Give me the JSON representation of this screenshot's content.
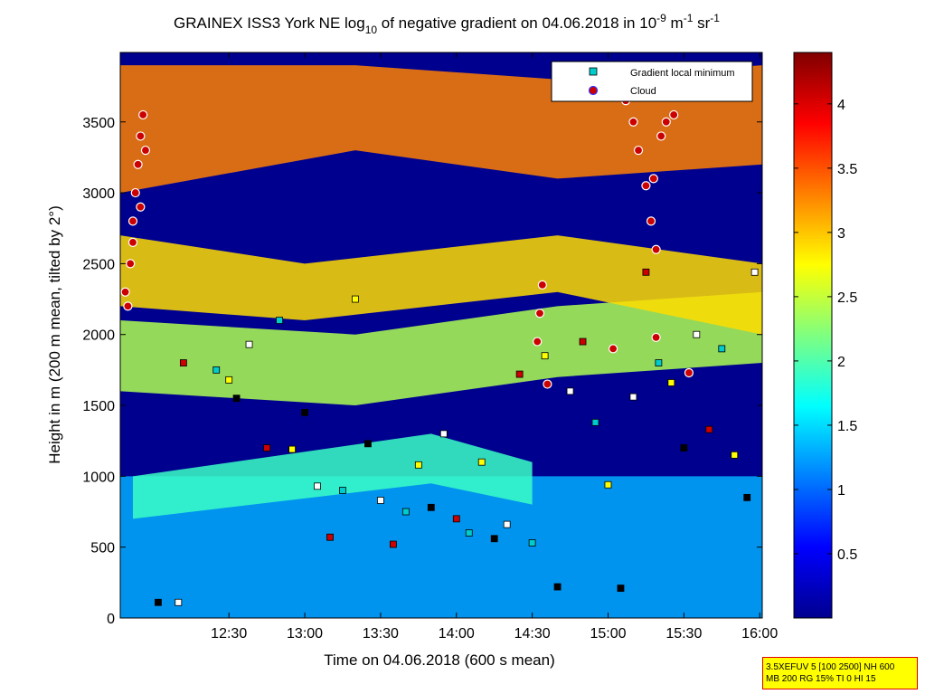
{
  "chart_data": {
    "type": "heatmap",
    "title": {
      "prefix": "GRAINEX ISS3 York NE log",
      "sub": "10",
      "middle": " of negative gradient on 04.06.2018 in 10",
      "sup1": "-9",
      "unit1": " m",
      "sup2": "-1",
      "unit2": " sr",
      "sup3": "-1"
    },
    "xlabel": "Time on 04.06.2018 (600 s mean)",
    "ylabel": "Height in m (200 m mean, tilted by 2°)",
    "x_ticks": [
      "12:30",
      "13:00",
      "13:30",
      "14:00",
      "14:30",
      "15:00",
      "15:30",
      "16:00"
    ],
    "x_tick_minutes": [
      750,
      780,
      810,
      840,
      870,
      900,
      930,
      960
    ],
    "xlim_minutes": [
      707,
      961
    ],
    "y_ticks": [
      "0",
      "500",
      "1000",
      "1500",
      "2000",
      "2500",
      "3000",
      "3500"
    ],
    "y_tick_values": [
      0,
      500,
      1000,
      1500,
      2000,
      2500,
      3000,
      3500
    ],
    "ylim": [
      0,
      3990
    ],
    "colorbar": {
      "ticks": [
        "0.5",
        "1",
        "1.5",
        "2",
        "2.5",
        "3",
        "3.5",
        "4"
      ],
      "tick_values": [
        0.5,
        1,
        1.5,
        2,
        2.5,
        3,
        3.5,
        4
      ],
      "range": [
        0,
        4.4
      ]
    },
    "legend": {
      "position": "top-right",
      "entries": [
        {
          "label": "Gradient local minimum",
          "marker": "square",
          "color": "#00cccc"
        },
        {
          "label": "Cloud",
          "marker": "circle",
          "color": "#cc0000"
        }
      ]
    },
    "colors": {
      "background": "#00008f"
    },
    "bands": [
      {
        "name": "near-surface",
        "x": [
          707,
          961
        ],
        "y": [
          [
            0,
            1000
          ]
        ],
        "level": 1.3
      },
      {
        "name": "layer-1",
        "x": [
          712,
          830,
          870
        ],
        "y": [
          [
            700,
            1000
          ],
          [
            950,
            1300
          ],
          [
            800,
            1100
          ]
        ],
        "level": 1.9
      },
      {
        "name": "layer-2",
        "x": [
          707,
          800,
          880,
          961
        ],
        "y": [
          [
            1600,
            2100
          ],
          [
            1500,
            2000
          ],
          [
            1700,
            2200
          ],
          [
            1800,
            2300
          ]
        ],
        "level": 2.4
      },
      {
        "name": "layer-3",
        "x": [
          707,
          780,
          880,
          961
        ],
        "y": [
          [
            2200,
            2700
          ],
          [
            2100,
            2500
          ],
          [
            2300,
            2700
          ],
          [
            2000,
            2500
          ]
        ],
        "level": 2.9
      },
      {
        "name": "upper",
        "x": [
          707,
          800,
          880,
          961
        ],
        "y": [
          [
            3000,
            3900
          ],
          [
            3300,
            3900
          ],
          [
            3100,
            3800
          ],
          [
            3200,
            3900
          ]
        ],
        "level": 3.3
      }
    ],
    "series": [
      {
        "name": "Gradient local minimum",
        "points": [
          [
            722,
            110
          ],
          [
            730,
            110
          ],
          [
            732,
            1800
          ],
          [
            745,
            1750
          ],
          [
            750,
            1680
          ],
          [
            753,
            1550
          ],
          [
            758,
            1930
          ],
          [
            765,
            1200
          ],
          [
            770,
            2100
          ],
          [
            775,
            1190
          ],
          [
            780,
            1450
          ],
          [
            785,
            930
          ],
          [
            790,
            570
          ],
          [
            795,
            900
          ],
          [
            800,
            2250
          ],
          [
            805,
            1230
          ],
          [
            810,
            830
          ],
          [
            815,
            520
          ],
          [
            820,
            750
          ],
          [
            825,
            1080
          ],
          [
            830,
            780
          ],
          [
            835,
            1300
          ],
          [
            840,
            700
          ],
          [
            845,
            600
          ],
          [
            850,
            1100
          ],
          [
            855,
            560
          ],
          [
            860,
            660
          ],
          [
            865,
            1720
          ],
          [
            870,
            530
          ],
          [
            875,
            1850
          ],
          [
            880,
            220
          ],
          [
            885,
            1600
          ],
          [
            890,
            1950
          ],
          [
            895,
            1380
          ],
          [
            900,
            940
          ],
          [
            905,
            210
          ],
          [
            910,
            1560
          ],
          [
            915,
            2440
          ],
          [
            920,
            1800
          ],
          [
            925,
            1660
          ],
          [
            930,
            1200
          ],
          [
            935,
            2000
          ],
          [
            940,
            1330
          ],
          [
            945,
            1900
          ],
          [
            950,
            1150
          ],
          [
            955,
            850
          ],
          [
            958,
            2440
          ]
        ]
      },
      {
        "name": "Cloud",
        "points": [
          [
            709,
            2300
          ],
          [
            711,
            2500
          ],
          [
            712,
            2800
          ],
          [
            713,
            3000
          ],
          [
            714,
            3200
          ],
          [
            715,
            3400
          ],
          [
            716,
            3550
          ],
          [
            717,
            3300
          ],
          [
            710,
            2200
          ],
          [
            712,
            2650
          ],
          [
            715,
            2900
          ],
          [
            907,
            3650
          ],
          [
            910,
            3500
          ],
          [
            912,
            3300
          ],
          [
            915,
            3050
          ],
          [
            917,
            2800
          ],
          [
            919,
            2600
          ],
          [
            921,
            3400
          ],
          [
            923,
            3500
          ],
          [
            926,
            3550
          ],
          [
            927,
            3700
          ],
          [
            918,
            3100
          ],
          [
            872,
            1950
          ],
          [
            873,
            2150
          ],
          [
            874,
            2350
          ],
          [
            876,
            1650
          ],
          [
            902,
            1900
          ],
          [
            919,
            1980
          ],
          [
            932,
            1730
          ]
        ]
      }
    ]
  },
  "info_box": {
    "line1": "3.5XEFUV 5 [100 2500] NH 600",
    "line2": "MB 200 RG 15% TI 0 HI 15"
  }
}
